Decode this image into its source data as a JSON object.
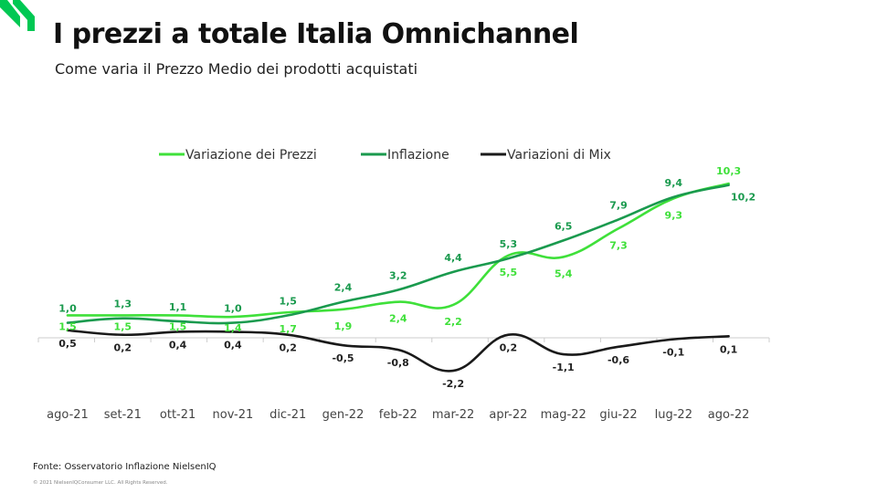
{
  "header": {
    "title": "I prezzi a totale Italia Omnichannel",
    "subtitle": "Come varia il Prezzo Medio dei prodotti acquistati"
  },
  "footer": {
    "source": "Fonte: Osservatorio Inflazione NielsenIQ",
    "copyright": "© 2021 NielsenIQConsumer LLC. All Rights Reserved."
  },
  "colors": {
    "brand": "#00c853",
    "variazione_prezzi": "#3fe03a",
    "inflazione": "#1a9a4e",
    "mix": "#1a1a1a",
    "axis": "#cccccc"
  },
  "chart_data": {
    "type": "line",
    "title": "",
    "xlabel": "",
    "ylabel": "",
    "legend_position": "top",
    "grid": false,
    "ylim": [
      -3,
      11
    ],
    "categories": [
      "ago-21",
      "set-21",
      "ott-21",
      "nov-21",
      "dic-21",
      "gen-22",
      "feb-22",
      "mar-22",
      "apr-22",
      "mag-22",
      "giu-22",
      "lug-22",
      "ago-22"
    ],
    "series": [
      {
        "name": "Variazione dei Prezzi",
        "color": "#3fe03a",
        "values": [
          1.5,
          1.5,
          1.5,
          1.4,
          1.7,
          1.9,
          2.4,
          2.2,
          5.5,
          5.4,
          7.3,
          9.3,
          10.3
        ],
        "labels": [
          "1,5",
          "1,5",
          "1,5",
          "1,4",
          "1,7",
          "1,9",
          "2,4",
          "2,2",
          "5,5",
          "5,4",
          "7,3",
          "9,3",
          "10,3"
        ]
      },
      {
        "name": "Inflazione",
        "color": "#1a9a4e",
        "values": [
          1.0,
          1.3,
          1.1,
          1.0,
          1.5,
          2.4,
          3.2,
          4.4,
          5.3,
          6.5,
          7.9,
          9.4,
          10.2
        ],
        "labels": [
          "1,0",
          "1,3",
          "1,1",
          "1,0",
          "1,5",
          "2,4",
          "3,2",
          "4,4",
          "5,3",
          "6,5",
          "7,9",
          "9,4",
          "10,2"
        ]
      },
      {
        "name": "Variazioni di Mix",
        "color": "#1a1a1a",
        "values": [
          0.5,
          0.2,
          0.4,
          0.4,
          0.2,
          -0.5,
          -0.8,
          -2.2,
          0.2,
          -1.1,
          -0.6,
          -0.1,
          0.1
        ],
        "labels": [
          "0,5",
          "0,2",
          "0,4",
          "0,4",
          "0,2",
          "-0,5",
          "-0,8",
          "-2,2",
          "0,2",
          "-1,1",
          "-0,6",
          "-0,1",
          "0,1"
        ]
      }
    ]
  }
}
